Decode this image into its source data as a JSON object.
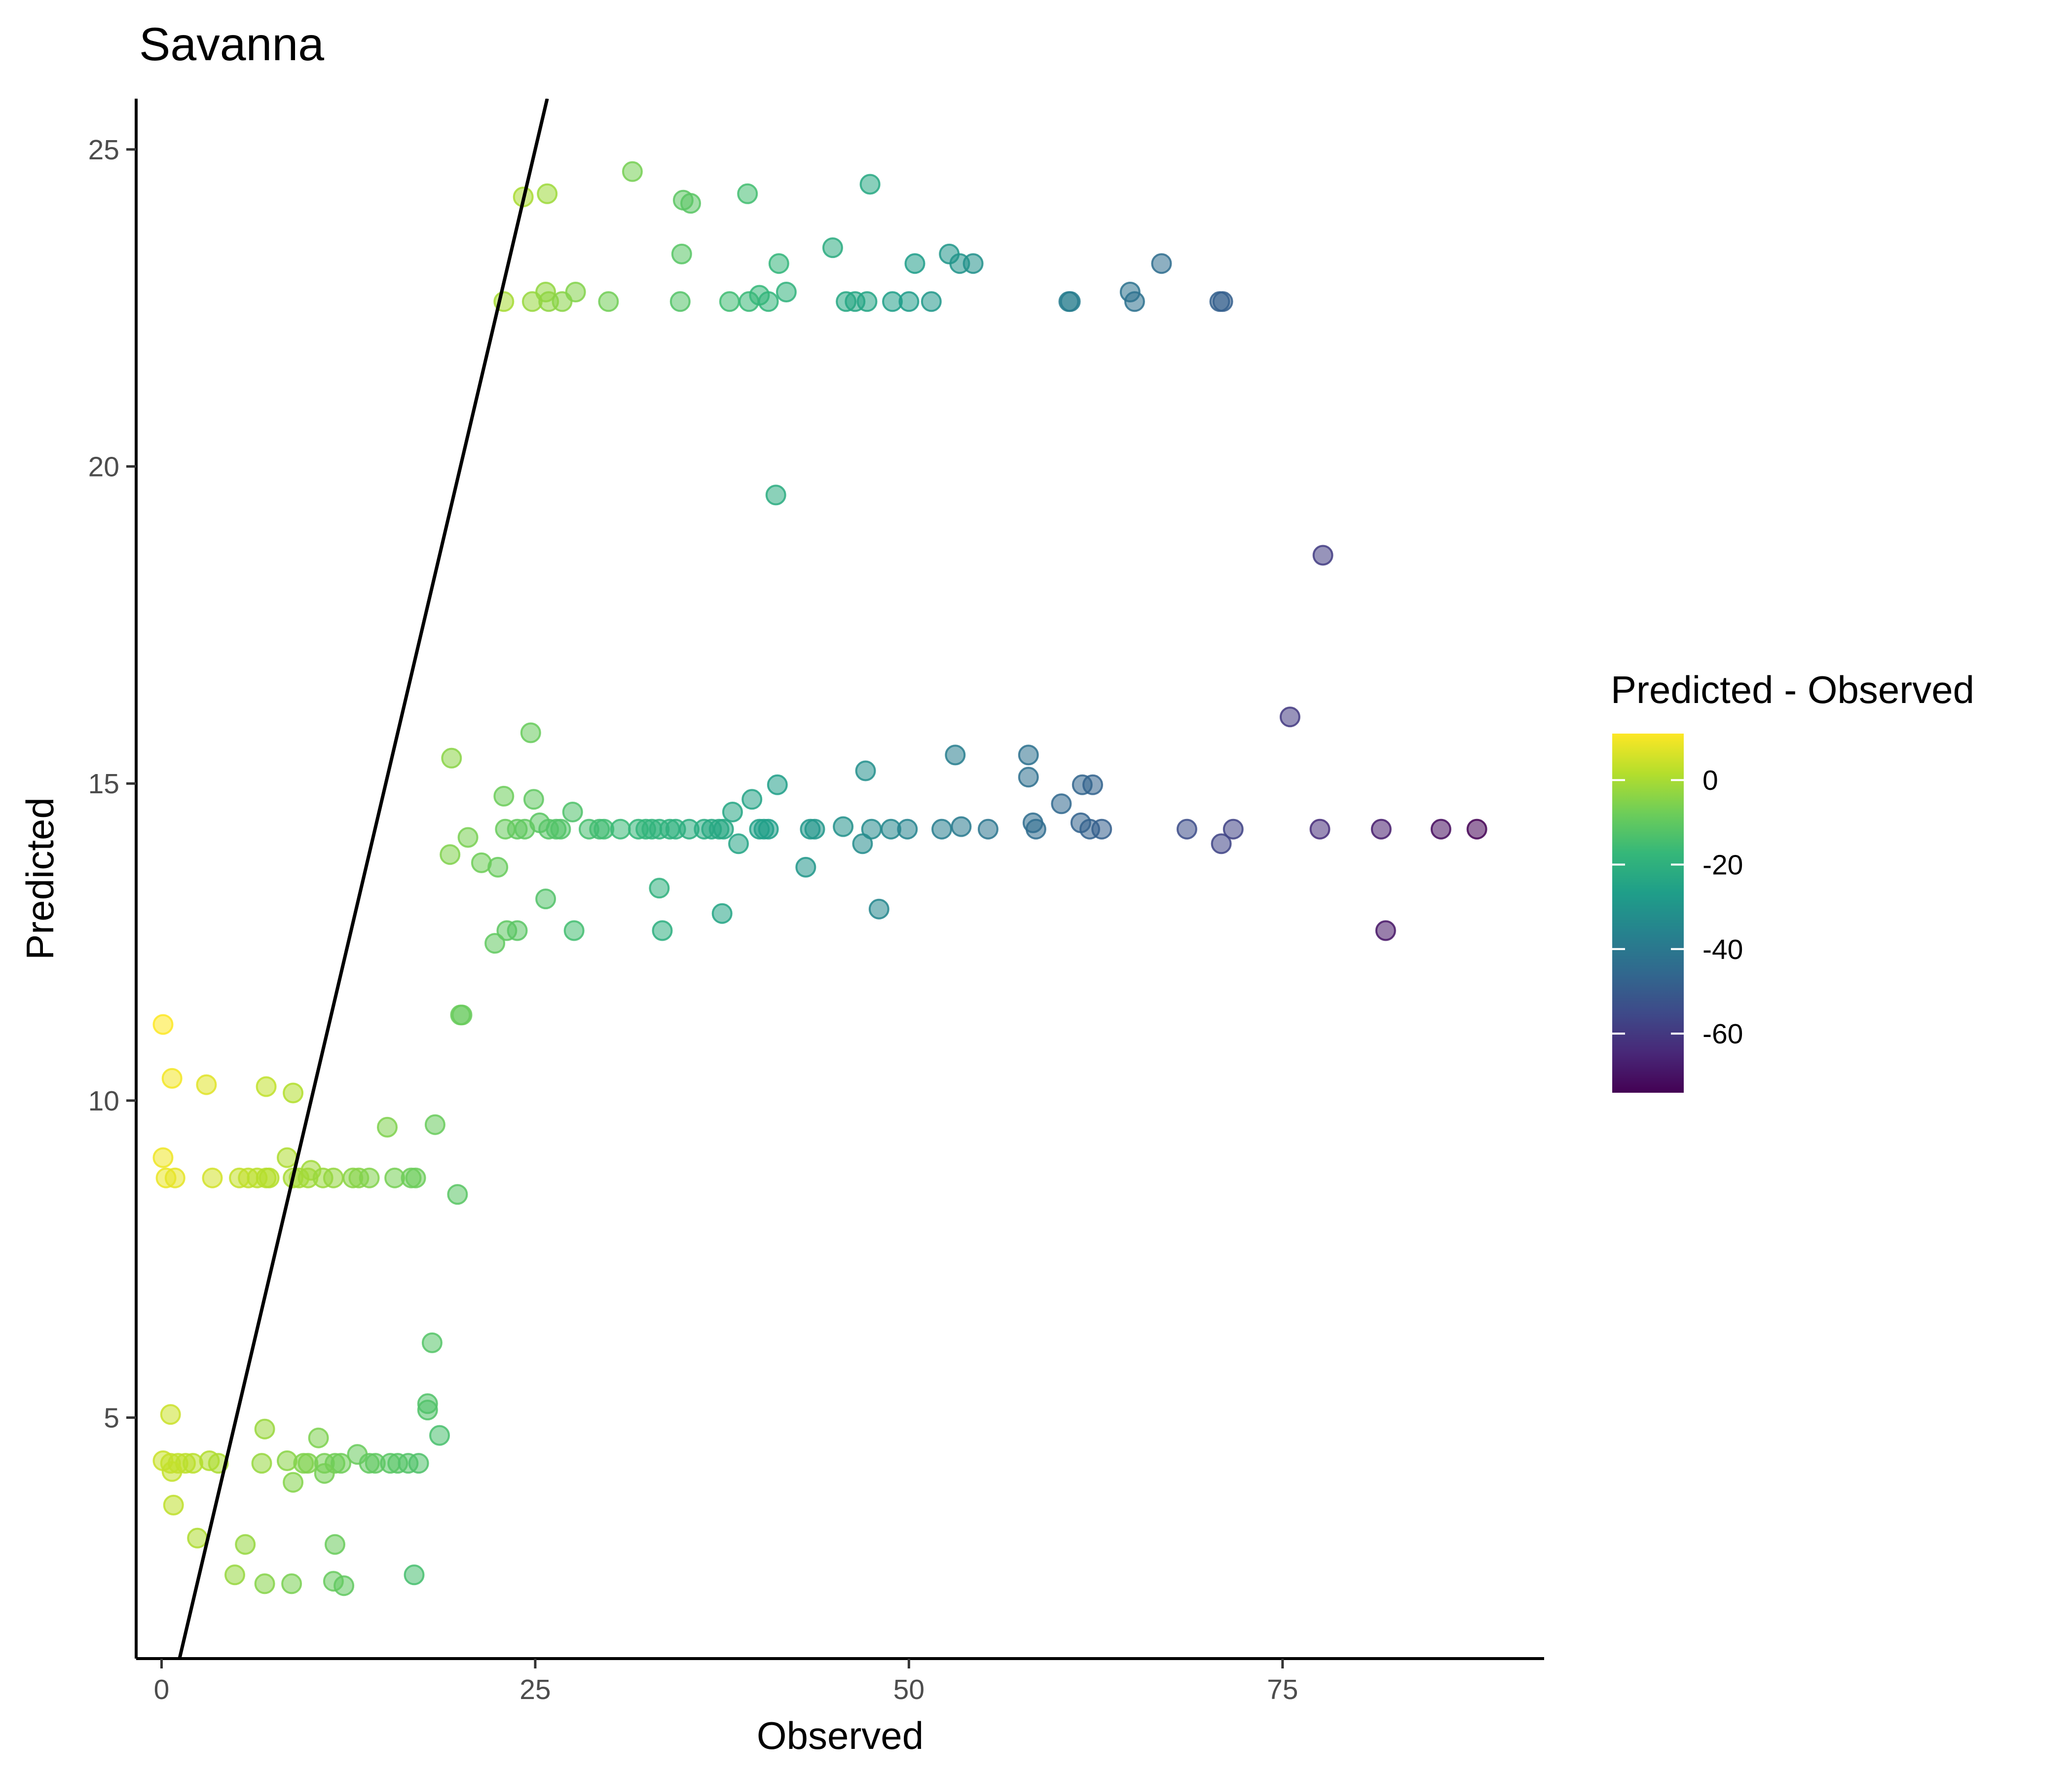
{
  "chart_data": {
    "type": "scatter",
    "title": "Savanna",
    "xlabel": "Observed",
    "ylabel": "Predicted",
    "xlim": [
      -1.7,
      92.5
    ],
    "ylim": [
      1.2,
      25.8
    ],
    "xticks": [
      0,
      25,
      50,
      75
    ],
    "yticks": [
      5,
      10,
      15,
      20,
      25
    ],
    "grid": false,
    "reference_line": {
      "type": "identity",
      "description": "y = x"
    },
    "color_scale": {
      "name": "viridis",
      "title": "Predicted - Observed",
      "range": [
        -74,
        11
      ],
      "ticks": [
        0,
        -20,
        -40,
        -60
      ],
      "stops": [
        "#440154",
        "#482878",
        "#3E4A89",
        "#31688E",
        "#26828E",
        "#1F9E89",
        "#35B779",
        "#6DCD59",
        "#B4DE2C",
        "#FDE725"
      ]
    },
    "legend_position": "right",
    "point_alpha": 0.55,
    "points": [
      [
        24.2,
        24.25
      ],
      [
        25.8,
        24.3
      ],
      [
        31.5,
        24.65
      ],
      [
        34.9,
        24.2
      ],
      [
        35.4,
        24.15
      ],
      [
        39.2,
        24.3
      ],
      [
        47.4,
        24.45
      ],
      [
        34.8,
        23.35
      ],
      [
        41.3,
        23.2
      ],
      [
        44.9,
        23.45
      ],
      [
        50.4,
        23.2
      ],
      [
        52.7,
        23.35
      ],
      [
        53.4,
        23.2
      ],
      [
        54.3,
        23.2
      ],
      [
        66.9,
        23.2
      ],
      [
        22.9,
        22.6
      ],
      [
        24.8,
        22.6
      ],
      [
        25.7,
        22.75
      ],
      [
        25.9,
        22.6
      ],
      [
        26.8,
        22.6
      ],
      [
        27.7,
        22.75
      ],
      [
        29.9,
        22.6
      ],
      [
        34.7,
        22.6
      ],
      [
        38.0,
        22.6
      ],
      [
        39.3,
        22.6
      ],
      [
        40.0,
        22.7
      ],
      [
        40.6,
        22.6
      ],
      [
        41.8,
        22.75
      ],
      [
        45.8,
        22.6
      ],
      [
        46.4,
        22.6
      ],
      [
        47.2,
        22.6
      ],
      [
        48.9,
        22.6
      ],
      [
        50.0,
        22.6
      ],
      [
        51.5,
        22.6
      ],
      [
        60.7,
        22.6
      ],
      [
        60.8,
        22.6
      ],
      [
        64.8,
        22.75
      ],
      [
        65.1,
        22.6
      ],
      [
        70.8,
        22.6
      ],
      [
        71.0,
        22.6
      ],
      [
        41.1,
        19.55
      ],
      [
        77.7,
        18.6
      ],
      [
        75.5,
        16.05
      ],
      [
        24.7,
        15.8
      ],
      [
        19.4,
        15.4
      ],
      [
        47.1,
        15.2
      ],
      [
        53.1,
        15.45
      ],
      [
        58.0,
        15.45
      ],
      [
        41.2,
        14.98
      ],
      [
        58.0,
        15.1
      ],
      [
        61.6,
        14.98
      ],
      [
        62.3,
        14.98
      ],
      [
        22.9,
        14.8
      ],
      [
        24.9,
        14.75
      ],
      [
        39.5,
        14.75
      ],
      [
        60.2,
        14.68
      ],
      [
        27.5,
        14.55
      ],
      [
        38.2,
        14.55
      ],
      [
        25.3,
        14.38
      ],
      [
        45.6,
        14.32
      ],
      [
        53.5,
        14.32
      ],
      [
        58.3,
        14.38
      ],
      [
        61.5,
        14.38
      ],
      [
        23.0,
        14.28
      ],
      [
        23.8,
        14.28
      ],
      [
        24.3,
        14.28
      ],
      [
        25.9,
        14.28
      ],
      [
        26.4,
        14.28
      ],
      [
        26.7,
        14.28
      ],
      [
        28.6,
        14.28
      ],
      [
        29.3,
        14.28
      ],
      [
        29.6,
        14.28
      ],
      [
        30.7,
        14.28
      ],
      [
        31.9,
        14.28
      ],
      [
        32.4,
        14.28
      ],
      [
        32.8,
        14.28
      ],
      [
        33.3,
        14.28
      ],
      [
        34.0,
        14.28
      ],
      [
        34.4,
        14.28
      ],
      [
        35.3,
        14.28
      ],
      [
        36.3,
        14.28
      ],
      [
        36.8,
        14.28
      ],
      [
        37.3,
        14.28
      ],
      [
        37.6,
        14.28
      ],
      [
        40.0,
        14.28
      ],
      [
        40.3,
        14.28
      ],
      [
        40.6,
        14.28
      ],
      [
        43.4,
        14.28
      ],
      [
        43.7,
        14.28
      ],
      [
        47.5,
        14.28
      ],
      [
        48.8,
        14.28
      ],
      [
        49.9,
        14.28
      ],
      [
        52.2,
        14.28
      ],
      [
        55.3,
        14.28
      ],
      [
        58.5,
        14.28
      ],
      [
        62.1,
        14.28
      ],
      [
        62.9,
        14.28
      ],
      [
        68.6,
        14.28
      ],
      [
        71.7,
        14.28
      ],
      [
        77.5,
        14.28
      ],
      [
        81.6,
        14.28
      ],
      [
        85.6,
        14.28
      ],
      [
        88.0,
        14.28
      ],
      [
        20.5,
        14.15
      ],
      [
        38.6,
        14.05
      ],
      [
        46.9,
        14.05
      ],
      [
        70.9,
        14.05
      ],
      [
        19.3,
        13.88
      ],
      [
        21.4,
        13.75
      ],
      [
        22.5,
        13.68
      ],
      [
        43.1,
        13.68
      ],
      [
        33.3,
        13.35
      ],
      [
        25.7,
        13.18
      ],
      [
        48.0,
        13.02
      ],
      [
        37.5,
        12.95
      ],
      [
        23.1,
        12.68
      ],
      [
        23.8,
        12.68
      ],
      [
        27.6,
        12.68
      ],
      [
        33.5,
        12.68
      ],
      [
        81.9,
        12.68
      ],
      [
        22.3,
        12.48
      ],
      [
        20.0,
        11.35
      ],
      [
        20.1,
        11.35
      ],
      [
        0.1,
        11.2
      ],
      [
        0.7,
        10.35
      ],
      [
        3.0,
        10.25
      ],
      [
        7.0,
        10.22
      ],
      [
        8.8,
        10.12
      ],
      [
        18.3,
        9.62
      ],
      [
        15.1,
        9.58
      ],
      [
        0.1,
        9.1
      ],
      [
        8.4,
        9.1
      ],
      [
        10.0,
        8.9
      ],
      [
        0.3,
        8.78
      ],
      [
        0.9,
        8.78
      ],
      [
        3.4,
        8.78
      ],
      [
        5.2,
        8.78
      ],
      [
        5.8,
        8.78
      ],
      [
        6.4,
        8.78
      ],
      [
        7.0,
        8.78
      ],
      [
        7.2,
        8.78
      ],
      [
        8.8,
        8.78
      ],
      [
        9.2,
        8.78
      ],
      [
        9.8,
        8.78
      ],
      [
        10.8,
        8.78
      ],
      [
        11.5,
        8.78
      ],
      [
        12.8,
        8.78
      ],
      [
        13.2,
        8.78
      ],
      [
        13.9,
        8.78
      ],
      [
        15.6,
        8.78
      ],
      [
        16.7,
        8.78
      ],
      [
        17.0,
        8.78
      ],
      [
        19.8,
        8.52
      ],
      [
        18.1,
        6.18
      ],
      [
        17.8,
        5.22
      ],
      [
        17.8,
        5.12
      ],
      [
        0.6,
        5.05
      ],
      [
        6.9,
        4.82
      ],
      [
        18.6,
        4.72
      ],
      [
        10.5,
        4.68
      ],
      [
        13.1,
        4.42
      ],
      [
        0.1,
        4.32
      ],
      [
        0.6,
        4.28
      ],
      [
        1.1,
        4.28
      ],
      [
        1.6,
        4.28
      ],
      [
        2.1,
        4.28
      ],
      [
        3.2,
        4.32
      ],
      [
        3.8,
        4.28
      ],
      [
        6.7,
        4.28
      ],
      [
        8.4,
        4.32
      ],
      [
        9.5,
        4.28
      ],
      [
        9.8,
        4.28
      ],
      [
        10.9,
        4.28
      ],
      [
        11.6,
        4.28
      ],
      [
        12.0,
        4.28
      ],
      [
        13.9,
        4.28
      ],
      [
        14.3,
        4.28
      ],
      [
        15.3,
        4.28
      ],
      [
        15.8,
        4.28
      ],
      [
        16.5,
        4.28
      ],
      [
        17.2,
        4.28
      ],
      [
        0.7,
        4.15
      ],
      [
        10.9,
        4.12
      ],
      [
        8.8,
        3.98
      ],
      [
        0.8,
        3.62
      ],
      [
        2.4,
        3.1
      ],
      [
        5.6,
        3.0
      ],
      [
        11.6,
        3.0
      ],
      [
        4.9,
        2.52
      ],
      [
        16.9,
        2.52
      ],
      [
        6.9,
        2.38
      ],
      [
        8.7,
        2.38
      ],
      [
        11.5,
        2.42
      ],
      [
        12.2,
        2.35
      ]
    ]
  }
}
